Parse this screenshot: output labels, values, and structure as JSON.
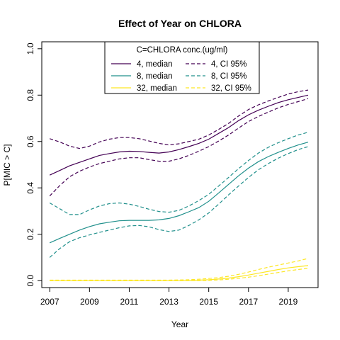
{
  "chart_data": {
    "type": "line",
    "title": "Effect of Year on CHLORA",
    "xlabel": "Year",
    "ylabel": "P[MIC > C]",
    "xlim": [
      2006.6,
      2020.5
    ],
    "ylim": [
      -0.03,
      1.03
    ],
    "xticks": [
      "2007",
      "2009",
      "2011",
      "2013",
      "2015",
      "2017",
      "2019"
    ],
    "yticks": [
      "0.0",
      "0.2",
      "0.4",
      "0.6",
      "0.8",
      "1.0"
    ],
    "legend": {
      "position": "top-center",
      "title": "C=CHLORA conc.(ug/ml)"
    },
    "x": [
      2007,
      2007.5,
      2008,
      2008.5,
      2009,
      2009.5,
      2010,
      2010.5,
      2011,
      2011.5,
      2012,
      2012.5,
      2013,
      2013.5,
      2014,
      2014.5,
      2015,
      2015.5,
      2016,
      2016.5,
      2017,
      2017.5,
      2018,
      2018.5,
      2019,
      2019.5,
      2020
    ],
    "series": [
      {
        "name": "4, median",
        "color": "#440154",
        "dash": "solid",
        "values": [
          0.455,
          0.475,
          0.495,
          0.51,
          0.525,
          0.54,
          0.548,
          0.555,
          0.558,
          0.557,
          0.553,
          0.55,
          0.555,
          0.565,
          0.578,
          0.592,
          0.61,
          0.635,
          0.66,
          0.69,
          0.715,
          0.735,
          0.752,
          0.768,
          0.78,
          0.79,
          0.8
        ]
      },
      {
        "name": "4, CI 95%",
        "color": "#440154",
        "dash": "dashed",
        "values": [
          0.612,
          0.598,
          0.58,
          0.57,
          0.58,
          0.598,
          0.61,
          0.617,
          0.617,
          0.612,
          0.602,
          0.592,
          0.585,
          0.59,
          0.6,
          0.61,
          0.628,
          0.652,
          0.678,
          0.71,
          0.738,
          0.758,
          0.775,
          0.79,
          0.805,
          0.815,
          0.822
        ]
      },
      {
        "name": "4, CI 95%",
        "color": "#440154",
        "dash": "dashed",
        "values": [
          0.365,
          0.41,
          0.448,
          0.472,
          0.49,
          0.505,
          0.515,
          0.525,
          0.53,
          0.53,
          0.522,
          0.515,
          0.515,
          0.525,
          0.54,
          0.558,
          0.578,
          0.602,
          0.628,
          0.658,
          0.686,
          0.708,
          0.727,
          0.745,
          0.76,
          0.772,
          0.785
        ]
      },
      {
        "name": "8, median",
        "color": "#21908C",
        "dash": "solid",
        "values": [
          0.163,
          0.182,
          0.2,
          0.218,
          0.233,
          0.245,
          0.252,
          0.258,
          0.26,
          0.26,
          0.26,
          0.262,
          0.268,
          0.28,
          0.297,
          0.315,
          0.342,
          0.378,
          0.415,
          0.452,
          0.485,
          0.513,
          0.535,
          0.553,
          0.57,
          0.585,
          0.597
        ]
      },
      {
        "name": "8, CI 95%",
        "color": "#21908C",
        "dash": "dashed",
        "values": [
          0.335,
          0.31,
          0.285,
          0.285,
          0.305,
          0.322,
          0.332,
          0.335,
          0.33,
          0.32,
          0.308,
          0.298,
          0.295,
          0.303,
          0.322,
          0.345,
          0.372,
          0.408,
          0.445,
          0.483,
          0.518,
          0.55,
          0.575,
          0.595,
          0.612,
          0.628,
          0.64
        ]
      },
      {
        "name": "8, CI 95%",
        "color": "#21908C",
        "dash": "dashed",
        "values": [
          0.1,
          0.138,
          0.168,
          0.185,
          0.197,
          0.208,
          0.218,
          0.228,
          0.236,
          0.238,
          0.232,
          0.22,
          0.212,
          0.218,
          0.238,
          0.262,
          0.292,
          0.33,
          0.37,
          0.408,
          0.445,
          0.478,
          0.505,
          0.528,
          0.548,
          0.565,
          0.578
        ]
      },
      {
        "name": "32, median",
        "color": "#FDE725",
        "dash": "solid",
        "values": [
          0.0,
          0.0,
          0.0,
          0.0,
          0.0,
          0.0,
          0.0,
          0.0,
          0.0,
          0.0,
          0.0,
          0.0,
          0.0,
          0.0,
          0.001,
          0.002,
          0.004,
          0.007,
          0.011,
          0.017,
          0.024,
          0.032,
          0.04,
          0.048,
          0.055,
          0.06,
          0.065
        ]
      },
      {
        "name": "32, CI 95%",
        "color": "#FDE725",
        "dash": "dashed",
        "values": [
          0.002,
          0.002,
          0.002,
          0.002,
          0.002,
          0.002,
          0.002,
          0.002,
          0.002,
          0.002,
          0.002,
          0.002,
          0.002,
          0.003,
          0.004,
          0.006,
          0.009,
          0.013,
          0.019,
          0.027,
          0.037,
          0.048,
          0.058,
          0.067,
          0.076,
          0.085,
          0.096
        ]
      },
      {
        "name": "32, CI 95%",
        "color": "#FDE725",
        "dash": "dashed",
        "values": [
          0.0,
          0.0,
          0.0,
          0.0,
          0.0,
          0.0,
          0.0,
          0.0,
          0.0,
          0.0,
          0.0,
          0.0,
          0.0,
          0.0,
          0.0,
          0.0,
          0.001,
          0.003,
          0.006,
          0.01,
          0.015,
          0.021,
          0.028,
          0.035,
          0.042,
          0.048,
          0.053
        ]
      }
    ],
    "legend_items": [
      {
        "label": "4, median",
        "color": "#440154",
        "dash": "solid"
      },
      {
        "label": "4, CI 95%",
        "color": "#440154",
        "dash": "dashed"
      },
      {
        "label": "8, median",
        "color": "#21908C",
        "dash": "solid"
      },
      {
        "label": "8, CI 95%",
        "color": "#21908C",
        "dash": "dashed"
      },
      {
        "label": "32, median",
        "color": "#FDE725",
        "dash": "solid"
      },
      {
        "label": "32, CI 95%",
        "color": "#FDE725",
        "dash": "dashed"
      }
    ]
  }
}
